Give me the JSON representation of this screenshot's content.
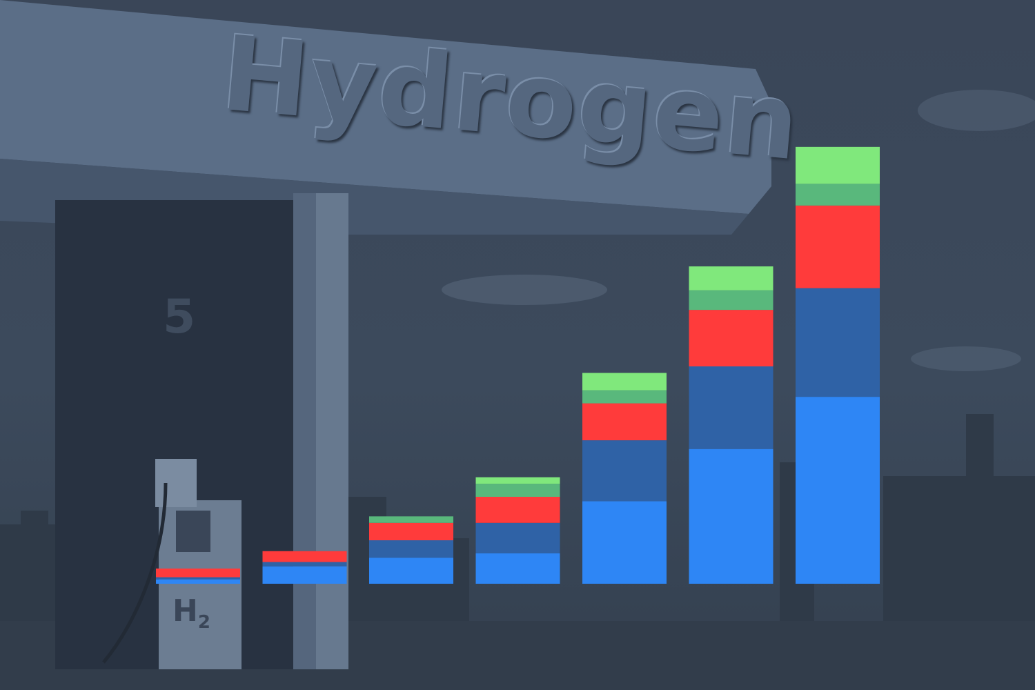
{
  "background": {
    "sign_text": "Hydrogen",
    "bay_number": "5",
    "pump_label": "H",
    "pump_label_sub": "2"
  },
  "chart_data": {
    "type": "bar",
    "stacked": true,
    "title": "",
    "xlabel": "",
    "ylabel": "",
    "categories": [
      "",
      "",
      "",
      "",
      "",
      "",
      ""
    ],
    "ylim": [
      0,
      100
    ],
    "grid": false,
    "series": [
      {
        "color": "#2e86f5",
        "values": [
          1,
          4,
          6,
          7,
          19,
          31,
          43
        ]
      },
      {
        "color": "#2f62a6",
        "values": [
          0.5,
          1,
          4,
          7,
          14,
          19,
          25
        ]
      },
      {
        "color": "#ff3b3b",
        "values": [
          2,
          2.5,
          4,
          6,
          8.5,
          13,
          19
        ]
      },
      {
        "color": "#59b87c",
        "values": [
          0,
          0,
          1.5,
          3,
          3,
          4.5,
          5
        ]
      },
      {
        "color": "#80e87c",
        "values": [
          0,
          0,
          0,
          1.5,
          4,
          5.5,
          8.5
        ]
      }
    ]
  }
}
